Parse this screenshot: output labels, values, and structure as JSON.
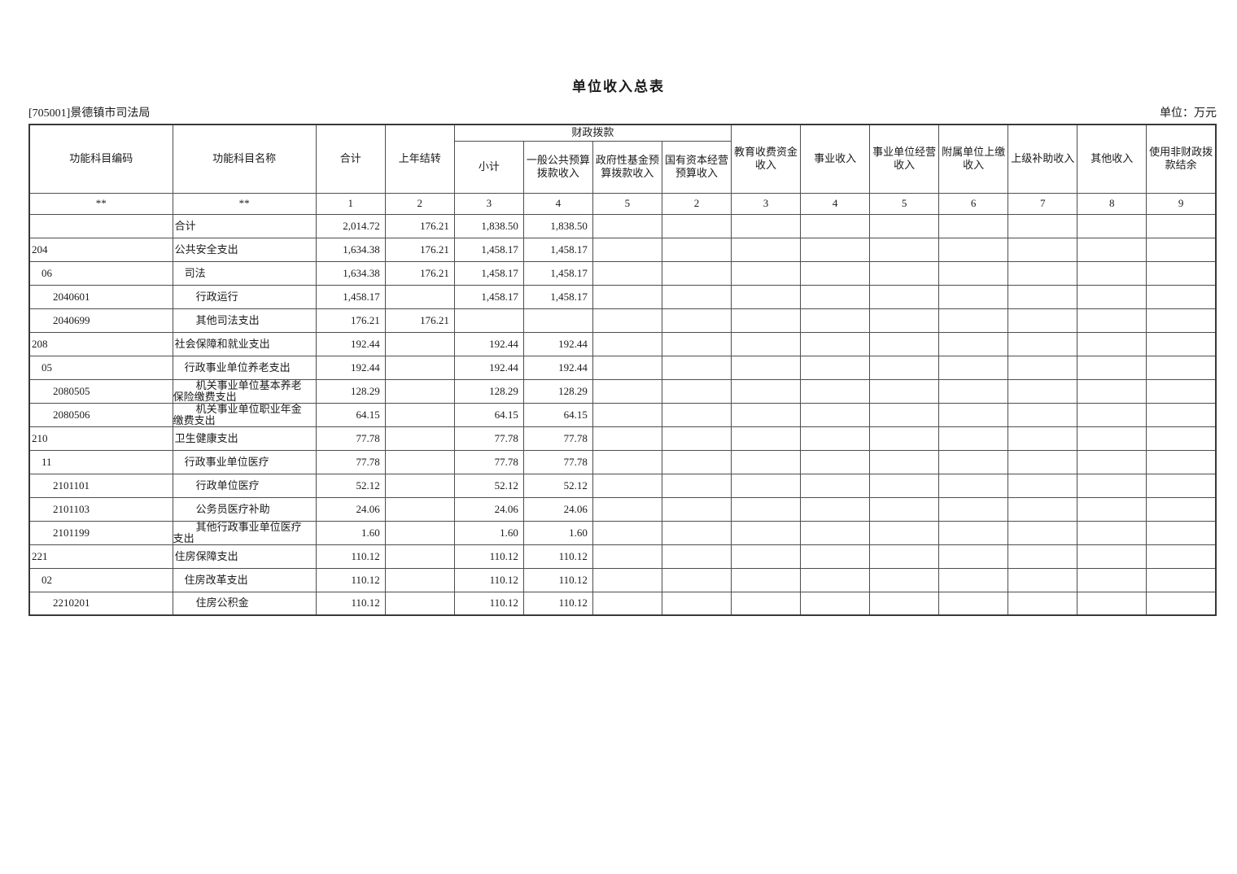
{
  "page": {
    "title": "单位收入总表",
    "org_label": "[705001]景德镇市司法局",
    "unit_label": "单位：万元"
  },
  "table": {
    "header": {
      "col_code": "功能科目编码",
      "col_name": "功能科目名称",
      "col_total": "合计",
      "col_carryover": "上年结转",
      "group_fiscal": "财政拨款",
      "fiscal_sub": [
        "小计",
        "一般公共预算拨款收入",
        "政府性基金预算拨款收入",
        "国有资本经营预算收入"
      ],
      "other_cols": [
        "教育收费资金收入",
        "事业收入",
        "事业单位经营收入",
        "附属单位上缴收入",
        "上级补助收入",
        "其他收入",
        "使用非财政拨款结余"
      ],
      "index_row": [
        "**",
        "**",
        "1",
        "2",
        "3",
        "4",
        "5",
        "2",
        "3",
        "4",
        "5",
        "6",
        "7",
        "8",
        "9"
      ]
    },
    "rows": [
      {
        "code": "",
        "name": "合计",
        "indent": 0,
        "cells": [
          "2,014.72",
          "176.21",
          "1,838.50",
          "1,838.50",
          "",
          "",
          "",
          "",
          "",
          "",
          "",
          "",
          ""
        ]
      },
      {
        "code": "204",
        "name": "公共安全支出",
        "indent": 0,
        "cells": [
          "1,634.38",
          "176.21",
          "1,458.17",
          "1,458.17",
          "",
          "",
          "",
          "",
          "",
          "",
          "",
          "",
          ""
        ]
      },
      {
        "code": "06",
        "name": "司法",
        "indent": 1,
        "cells": [
          "1,634.38",
          "176.21",
          "1,458.17",
          "1,458.17",
          "",
          "",
          "",
          "",
          "",
          "",
          "",
          "",
          ""
        ]
      },
      {
        "code": "2040601",
        "name": "行政运行",
        "indent": 2,
        "cells": [
          "1,458.17",
          "",
          "1,458.17",
          "1,458.17",
          "",
          "",
          "",
          "",
          "",
          "",
          "",
          "",
          ""
        ]
      },
      {
        "code": "2040699",
        "name": "其他司法支出",
        "indent": 2,
        "cells": [
          "176.21",
          "176.21",
          "",
          "",
          "",
          "",
          "",
          "",
          "",
          "",
          "",
          "",
          ""
        ]
      },
      {
        "code": "208",
        "name": "社会保障和就业支出",
        "indent": 0,
        "cells": [
          "192.44",
          "",
          "192.44",
          "192.44",
          "",
          "",
          "",
          "",
          "",
          "",
          "",
          "",
          ""
        ]
      },
      {
        "code": "05",
        "name": "行政事业单位养老支出",
        "indent": 1,
        "cells": [
          "192.44",
          "",
          "192.44",
          "192.44",
          "",
          "",
          "",
          "",
          "",
          "",
          "",
          "",
          ""
        ]
      },
      {
        "code": "2080505",
        "name": "机关事业单位基本养老\n保险缴费支出",
        "indent": 2,
        "cells": [
          "128.29",
          "",
          "128.29",
          "128.29",
          "",
          "",
          "",
          "",
          "",
          "",
          "",
          "",
          ""
        ]
      },
      {
        "code": "2080506",
        "name": "机关事业单位职业年金\n缴费支出",
        "indent": 2,
        "cells": [
          "64.15",
          "",
          "64.15",
          "64.15",
          "",
          "",
          "",
          "",
          "",
          "",
          "",
          "",
          ""
        ]
      },
      {
        "code": "210",
        "name": "卫生健康支出",
        "indent": 0,
        "cells": [
          "77.78",
          "",
          "77.78",
          "77.78",
          "",
          "",
          "",
          "",
          "",
          "",
          "",
          "",
          ""
        ]
      },
      {
        "code": "11",
        "name": "行政事业单位医疗",
        "indent": 1,
        "cells": [
          "77.78",
          "",
          "77.78",
          "77.78",
          "",
          "",
          "",
          "",
          "",
          "",
          "",
          "",
          ""
        ]
      },
      {
        "code": "2101101",
        "name": "行政单位医疗",
        "indent": 2,
        "cells": [
          "52.12",
          "",
          "52.12",
          "52.12",
          "",
          "",
          "",
          "",
          "",
          "",
          "",
          "",
          ""
        ]
      },
      {
        "code": "2101103",
        "name": "公务员医疗补助",
        "indent": 2,
        "cells": [
          "24.06",
          "",
          "24.06",
          "24.06",
          "",
          "",
          "",
          "",
          "",
          "",
          "",
          "",
          ""
        ]
      },
      {
        "code": "2101199",
        "name": "其他行政事业单位医疗\n支出",
        "indent": 2,
        "cells": [
          "1.60",
          "",
          "1.60",
          "1.60",
          "",
          "",
          "",
          "",
          "",
          "",
          "",
          "",
          ""
        ]
      },
      {
        "code": "221",
        "name": "住房保障支出",
        "indent": 0,
        "cells": [
          "110.12",
          "",
          "110.12",
          "110.12",
          "",
          "",
          "",
          "",
          "",
          "",
          "",
          "",
          ""
        ]
      },
      {
        "code": "02",
        "name": "住房改革支出",
        "indent": 1,
        "cells": [
          "110.12",
          "",
          "110.12",
          "110.12",
          "",
          "",
          "",
          "",
          "",
          "",
          "",
          "",
          ""
        ]
      },
      {
        "code": "2210201",
        "name": "住房公积金",
        "indent": 2,
        "cells": [
          "110.12",
          "",
          "110.12",
          "110.12",
          "",
          "",
          "",
          "",
          "",
          "",
          "",
          "",
          ""
        ]
      }
    ]
  }
}
